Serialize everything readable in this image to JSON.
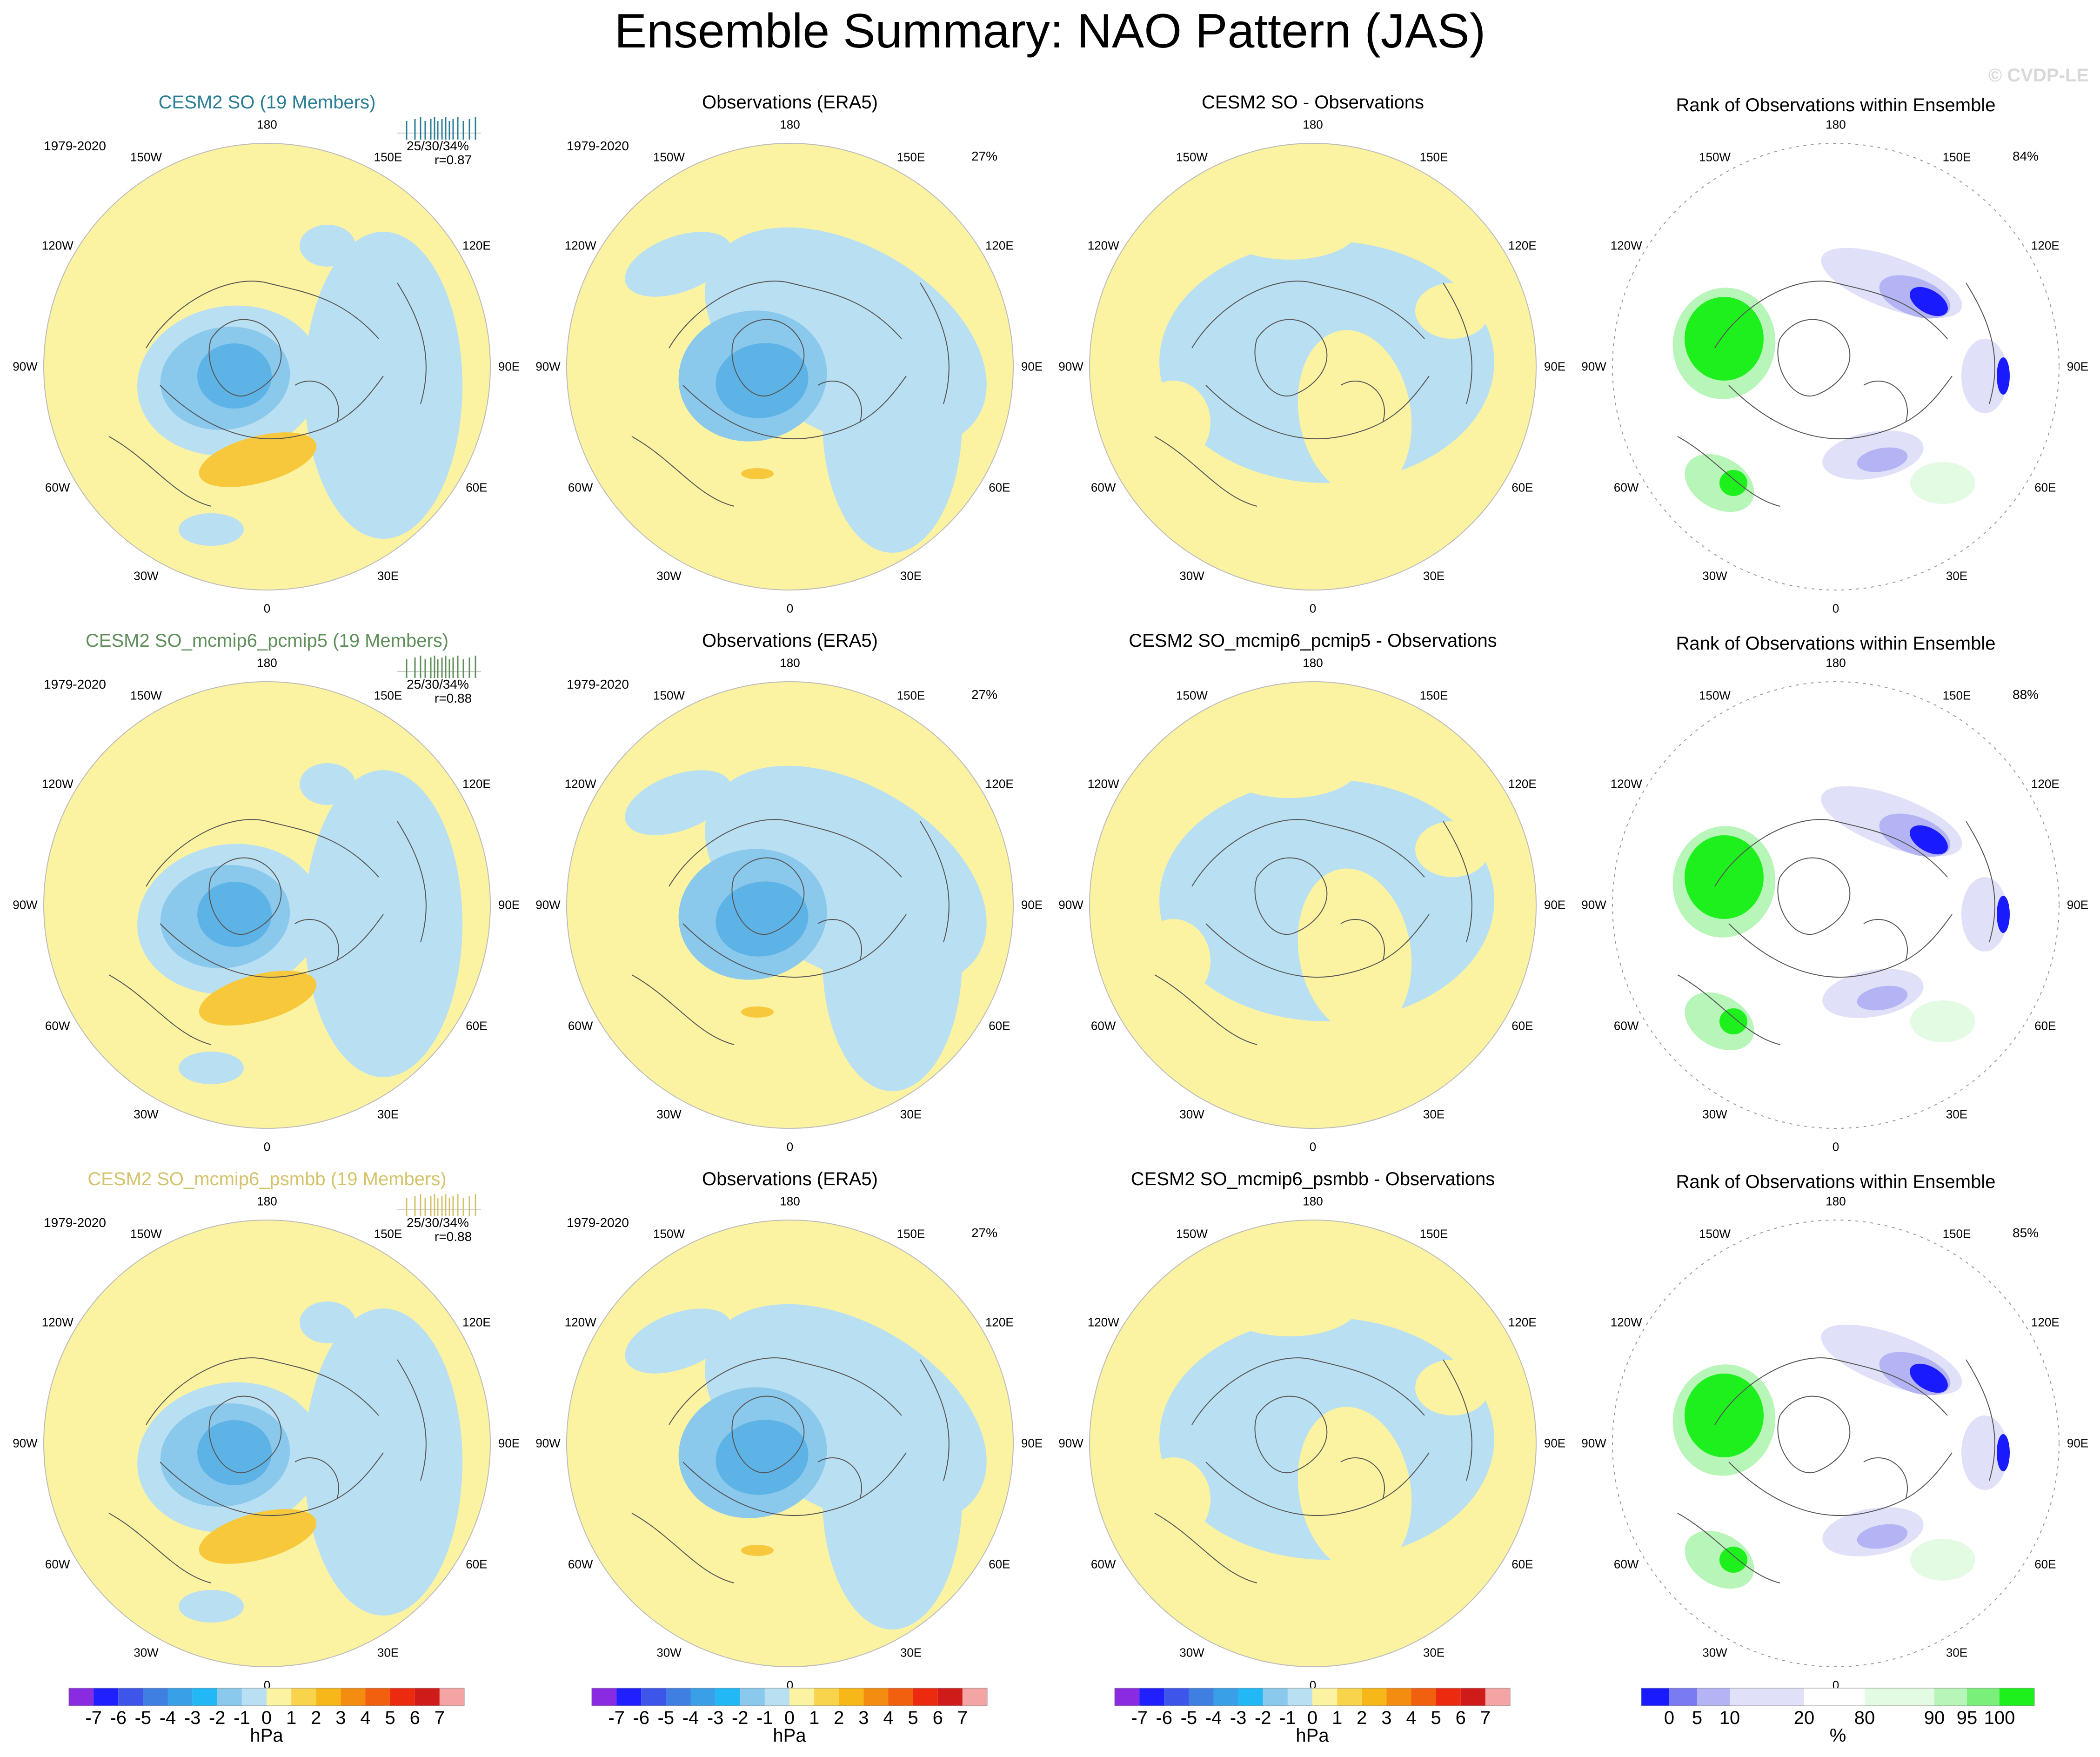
{
  "title": "Ensemble Summary: NAO Pattern (JAS)",
  "watermark": "© CVDP-LE",
  "period": "1979-2020",
  "lon_labels": [
    "180",
    "150E",
    "120E",
    "90E",
    "60E",
    "30E",
    "0",
    "30W",
    "60W",
    "90W",
    "120W",
    "150W"
  ],
  "colors": {
    "land_yellow": "#fbf3a1",
    "ocean_blue": "#b9dff3",
    "neg1": "#8ac8ec",
    "neg2": "#5db2e6",
    "pos1": "#f8c83c",
    "pos2": "#f2b227"
  },
  "rows": [
    {
      "model_title": "CESM2 SO (19 Members)",
      "model_title_color": "#2a7e96",
      "stats": "25/30/34%",
      "corr": "r=0.87",
      "obs_title": "Observations (ERA5)",
      "obs_pct": "27%",
      "diff_title": "CESM2 SO - Observations",
      "rank_title": "Rank of Observations within Ensemble",
      "rank_pct": "84%"
    },
    {
      "model_title": "CESM2 SO_mcmip6_pcmip5 (19 Members)",
      "model_title_color": "#5f8f5a",
      "stats": "25/30/34%",
      "corr": "r=0.88",
      "obs_title": "Observations (ERA5)",
      "obs_pct": "27%",
      "diff_title": "CESM2 SO_mcmip6_pcmip5 - Observations",
      "rank_title": "Rank of Observations within Ensemble",
      "rank_pct": "88%"
    },
    {
      "model_title": "CESM2 SO_mcmip6_psmbb (19 Members)",
      "model_title_color": "#d4c36a",
      "stats": "25/30/34%",
      "corr": "r=0.88",
      "obs_title": "Observations (ERA5)",
      "obs_pct": "27%",
      "diff_title": "CESM2 SO_mcmip6_psmbb - Observations",
      "rank_title": "Rank of Observations within Ensemble",
      "rank_pct": "85%"
    }
  ],
  "colorbar_hpa": {
    "unit": "hPa",
    "labels": [
      "-7",
      "-6",
      "-5",
      "-4",
      "-3",
      "-2",
      "-1",
      "0",
      "1",
      "2",
      "3",
      "4",
      "5",
      "6",
      "7"
    ],
    "colors": [
      "#8a2be2",
      "#1f1fff",
      "#3d55e8",
      "#3f7fe2",
      "#39a0e8",
      "#22b8f5",
      "#8ac8ec",
      "#b9dff3",
      "#fbf3a1",
      "#f8d44c",
      "#f8b718",
      "#f58c12",
      "#f0600f",
      "#eb2a0f",
      "#d01b1b",
      "#f4a4a4"
    ]
  },
  "colorbar_rank": {
    "unit": "%",
    "labels": [
      "0",
      "5",
      "10",
      "20",
      "80",
      "90",
      "95",
      "100"
    ],
    "colors": [
      "#1a1aff",
      "#7a7af2",
      "#b4b4f4",
      "#e0e0f8",
      "#ffffff",
      "#e3fbe3",
      "#b8f5b8",
      "#7af07a",
      "#1ef01e"
    ]
  }
}
